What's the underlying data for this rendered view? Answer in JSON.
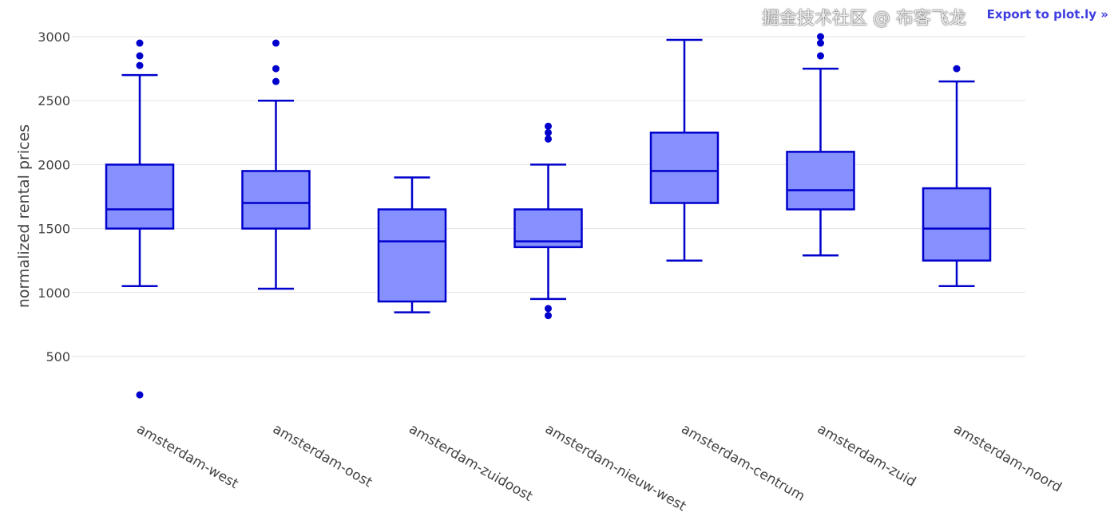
{
  "chart_data": {
    "type": "box",
    "xlabel": "",
    "ylabel": "normalized rental prices",
    "ylim": [
      0,
      3100
    ],
    "yticks": [
      500,
      1000,
      1500,
      2000,
      2500,
      3000
    ],
    "grid": true,
    "colors": {
      "line": "#0000cc",
      "fill": "#8790ff",
      "grid": "#e3e3e3"
    },
    "categories": [
      "amsterdam-west",
      "amsterdam-oost",
      "amsterdam-zuidoost",
      "amsterdam-nieuw-west",
      "amsterdam-centrum",
      "amsterdam-zuid",
      "amsterdam-noord"
    ],
    "boxes": [
      {
        "lower_fence": 1050,
        "q1": 1500,
        "median": 1650,
        "q3": 2000,
        "upper_fence": 2700,
        "outliers": [
          2950,
          2850,
          2775,
          200
        ]
      },
      {
        "lower_fence": 1030,
        "q1": 1500,
        "median": 1700,
        "q3": 1950,
        "upper_fence": 2500,
        "outliers": [
          2950,
          2750,
          2650
        ]
      },
      {
        "lower_fence": 845,
        "q1": 930,
        "median": 1400,
        "q3": 1650,
        "upper_fence": 1900,
        "outliers": []
      },
      {
        "lower_fence": 950,
        "q1": 1355,
        "median": 1400,
        "q3": 1650,
        "upper_fence": 2000,
        "outliers": [
          2300,
          2250,
          2200,
          875,
          820
        ]
      },
      {
        "lower_fence": 1250,
        "q1": 1700,
        "median": 1950,
        "q3": 2250,
        "upper_fence": 2975,
        "outliers": []
      },
      {
        "lower_fence": 1290,
        "q1": 1650,
        "median": 1800,
        "q3": 2100,
        "upper_fence": 2750,
        "outliers": [
          3000,
          2950,
          2850
        ]
      },
      {
        "lower_fence": 1050,
        "q1": 1250,
        "median": 1500,
        "q3": 1815,
        "upper_fence": 2650,
        "outliers": [
          2750
        ]
      }
    ]
  },
  "export_link": "Export to plot.ly »",
  "watermark": "掘金技术社区 @ 布客飞龙"
}
